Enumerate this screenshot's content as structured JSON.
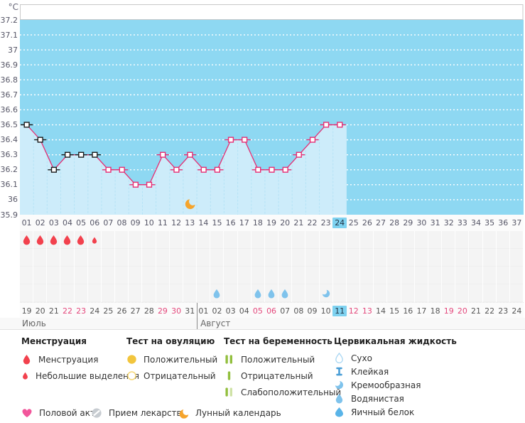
{
  "chart_data": {
    "type": "line",
    "unit_label": "°C",
    "ylim": [
      35.9,
      37.2
    ],
    "y_ticks": [
      "37.2",
      "37.1",
      "37",
      "36.9",
      "36.8",
      "36.7",
      "36.6",
      "36.5",
      "36.4",
      "36.3",
      "36.2",
      "36.1",
      "36",
      "35.9"
    ],
    "categories": [
      "01",
      "02",
      "03",
      "04",
      "05",
      "06",
      "07",
      "08",
      "09",
      "10",
      "11",
      "12",
      "13",
      "14",
      "15",
      "16",
      "17",
      "18",
      "19",
      "20",
      "21",
      "22",
      "23",
      "24",
      "25",
      "26",
      "27",
      "28",
      "29",
      "30",
      "31",
      "32",
      "33",
      "34",
      "35",
      "36",
      "37"
    ],
    "series": [
      {
        "name": "temperature",
        "values": [
          36.5,
          36.4,
          36.2,
          36.3,
          36.3,
          36.3,
          36.2,
          36.2,
          36.1,
          36.1,
          36.3,
          36.2,
          36.3,
          36.2,
          36.2,
          36.4,
          36.4,
          36.2,
          36.2,
          36.2,
          36.3,
          36.4,
          36.5,
          36.5,
          null,
          null,
          null,
          null,
          null,
          null,
          null,
          null,
          null,
          null,
          null,
          null,
          null
        ]
      }
    ],
    "current_cycle_day": "24",
    "black_marker_days": [
      "01",
      "02",
      "03",
      "04",
      "05",
      "06"
    ],
    "menstruation": [
      {
        "day": "01",
        "size": "large"
      },
      {
        "day": "02",
        "size": "large"
      },
      {
        "day": "03",
        "size": "large"
      },
      {
        "day": "04",
        "size": "large"
      },
      {
        "day": "05",
        "size": "large"
      },
      {
        "day": "06",
        "size": "small"
      }
    ],
    "cervical_fluid": [
      {
        "day": "15",
        "type": "водянистая"
      },
      {
        "day": "18",
        "type": "водянистая"
      },
      {
        "day": "19",
        "type": "водянистая"
      },
      {
        "day": "20",
        "type": "водянистая"
      },
      {
        "day": "23",
        "type": "кремообразная"
      }
    ],
    "lunar_event_day": "13",
    "grid": true,
    "legend_position": "bottom"
  },
  "calendar": {
    "months": [
      {
        "label": "Июль",
        "days": [
          {
            "label": "19"
          },
          {
            "label": "20"
          },
          {
            "label": "21"
          },
          {
            "label": "22",
            "weekend": true
          },
          {
            "label": "23",
            "weekend": true
          },
          {
            "label": "24"
          },
          {
            "label": "25"
          },
          {
            "label": "26"
          },
          {
            "label": "27"
          },
          {
            "label": "28"
          },
          {
            "label": "29",
            "weekend": true
          },
          {
            "label": "30",
            "weekend": true
          },
          {
            "label": "31"
          }
        ]
      },
      {
        "label": "Август",
        "days": [
          {
            "label": "01"
          },
          {
            "label": "02"
          },
          {
            "label": "03"
          },
          {
            "label": "04"
          },
          {
            "label": "05",
            "weekend": true
          },
          {
            "label": "06",
            "weekend": true
          },
          {
            "label": "07"
          },
          {
            "label": "08"
          },
          {
            "label": "09"
          },
          {
            "label": "10"
          },
          {
            "label": "11",
            "today": true
          },
          {
            "label": "12",
            "weekend": true
          },
          {
            "label": "13",
            "weekend": true
          },
          {
            "label": "14"
          },
          {
            "label": "15"
          },
          {
            "label": "16"
          },
          {
            "label": "17"
          },
          {
            "label": "18"
          },
          {
            "label": "19",
            "weekend": true
          },
          {
            "label": "20",
            "weekend": true
          },
          {
            "label": "21"
          },
          {
            "label": "22"
          },
          {
            "label": "23"
          },
          {
            "label": "24"
          }
        ]
      }
    ]
  },
  "legend": {
    "sections": [
      {
        "title": "Менструация",
        "items": [
          {
            "icon": "menstruation-drop",
            "label": "Менструация"
          },
          {
            "icon": "spotting-drop",
            "label": "Небольшие выделения"
          }
        ]
      },
      {
        "title": "Тест на овуляцию",
        "items": [
          {
            "icon": "ovulation-positive",
            "label": "Положительный"
          },
          {
            "icon": "ovulation-negative",
            "label": "Отрицательный"
          }
        ]
      },
      {
        "title": "Тест на беременность",
        "items": [
          {
            "icon": "pregnancy-positive",
            "label": "Положительный"
          },
          {
            "icon": "pregnancy-negative",
            "label": "Отрицательный"
          },
          {
            "icon": "pregnancy-weak-positive",
            "label": "Слабоположительный"
          }
        ]
      },
      {
        "title": "Цервикальная жидкость",
        "items": [
          {
            "icon": "fluid-dry",
            "label": "Сухо"
          },
          {
            "icon": "fluid-sticky",
            "label": "Клейкая"
          },
          {
            "icon": "fluid-creamy",
            "label": "Кремообразная"
          },
          {
            "icon": "fluid-watery",
            "label": "Водянистая"
          },
          {
            "icon": "fluid-eggwhite",
            "label": "Яичный белок"
          }
        ]
      }
    ],
    "extra_items": [
      {
        "icon": "intercourse-heart",
        "label": "Половой акт"
      },
      {
        "icon": "medication-pill",
        "label": "Прием лекарств"
      },
      {
        "icon": "lunar-moon",
        "label": "Лунный календарь"
      }
    ]
  },
  "colors": {
    "plot_background": "#8ed8f2",
    "area_fill": "#cdecfa",
    "temperature_line": "#e62e73",
    "black_marker": "#1a1a1a",
    "menstruation_red": "#f2414d",
    "cervical_blue": "#7fc3ec",
    "eggwhite_blue": "#59b4e8",
    "sticky_blue": "#4a9ed6",
    "dry_outline": "#a9d7f3",
    "today_highlight": "#7ed2f0",
    "weekend_date": "#e4487c",
    "ovulation_yellow": "#f2c53d",
    "ovulation_yellow_light": "#f6d878",
    "pregnancy_green": "#92bf3e",
    "pregnancy_green_pale": "#cfe2a6",
    "heart_pink": "#f2569b",
    "moon_orange": "#f5a42c",
    "pill_gray": "#c7ccd1"
  }
}
